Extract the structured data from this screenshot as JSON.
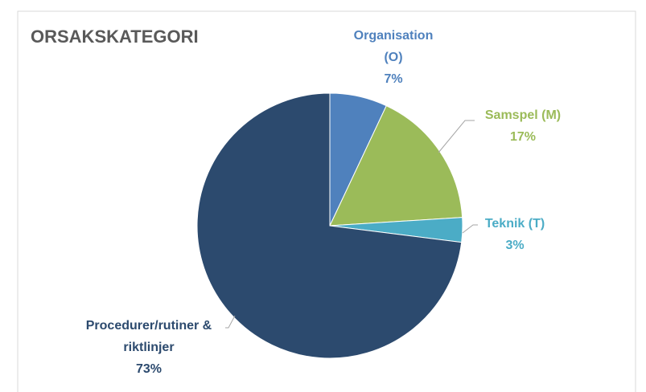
{
  "chart_data": {
    "type": "pie",
    "title": "ORSAKSKATEGORI",
    "categories": [
      "Organisation (O)",
      "Samspel (M)",
      "Teknik (T)",
      "Procedurer/rutiner & riktlinjer"
    ],
    "values": [
      7,
      17,
      3,
      73
    ],
    "value_labels": [
      "7%",
      "17%",
      "3%",
      "73%"
    ],
    "colors": [
      "#4f81bd",
      "#9bbb59",
      "#4bacc6",
      "#2c4a6e"
    ]
  }
}
